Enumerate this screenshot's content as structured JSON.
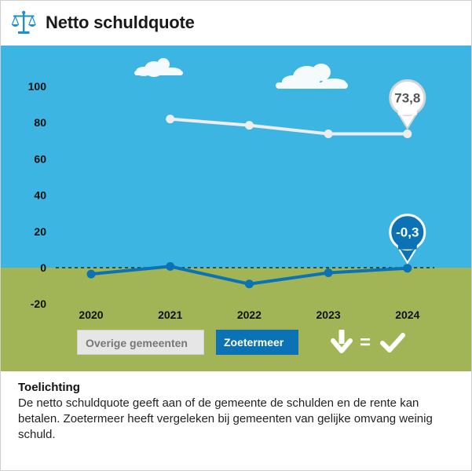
{
  "header": {
    "title": "Netto schuldquote",
    "icon": "scales-icon"
  },
  "colors": {
    "sky": "#3db5e3",
    "grass": "#a2b556",
    "zoetermeer": "#0b72b5",
    "overige": "#ededed",
    "header_icon": "#1e8ecf"
  },
  "chart_data": {
    "type": "line",
    "x": [
      "2020",
      "2021",
      "2022",
      "2023",
      "2024"
    ],
    "ylim": [
      -20,
      100
    ],
    "yticks": [
      100,
      80,
      60,
      40,
      20,
      0,
      -20
    ],
    "series": [
      {
        "name": "Overige gemeenten",
        "values": [
          null,
          82,
          78.5,
          73.8,
          73.8
        ]
      },
      {
        "name": "Zoetermeer",
        "values": [
          -3.5,
          0.7,
          -9,
          -2.8,
          -0.3
        ]
      }
    ],
    "annotations": [
      {
        "series": "Overige gemeenten",
        "x": "2024",
        "label": "73,8"
      },
      {
        "series": "Zoetermeer",
        "x": "2024",
        "label": "-0,3"
      }
    ],
    "legend_placement": "bottom",
    "grid": false
  },
  "legend": {
    "overige_label": "Overige gemeenten",
    "zoetermeer_label": "Zoetermeer",
    "indicator_symbol": "=",
    "indicator_icons": [
      "arrow-down-icon",
      "checkmark-icon"
    ]
  },
  "toelichting": {
    "heading": "Toelichting",
    "body": "De netto schuldquote geeft aan of de gemeente de schulden en de rente kan betalen. Zoetermeer heeft vergeleken bij gemeenten van gelijke omvang weinig schuld."
  }
}
